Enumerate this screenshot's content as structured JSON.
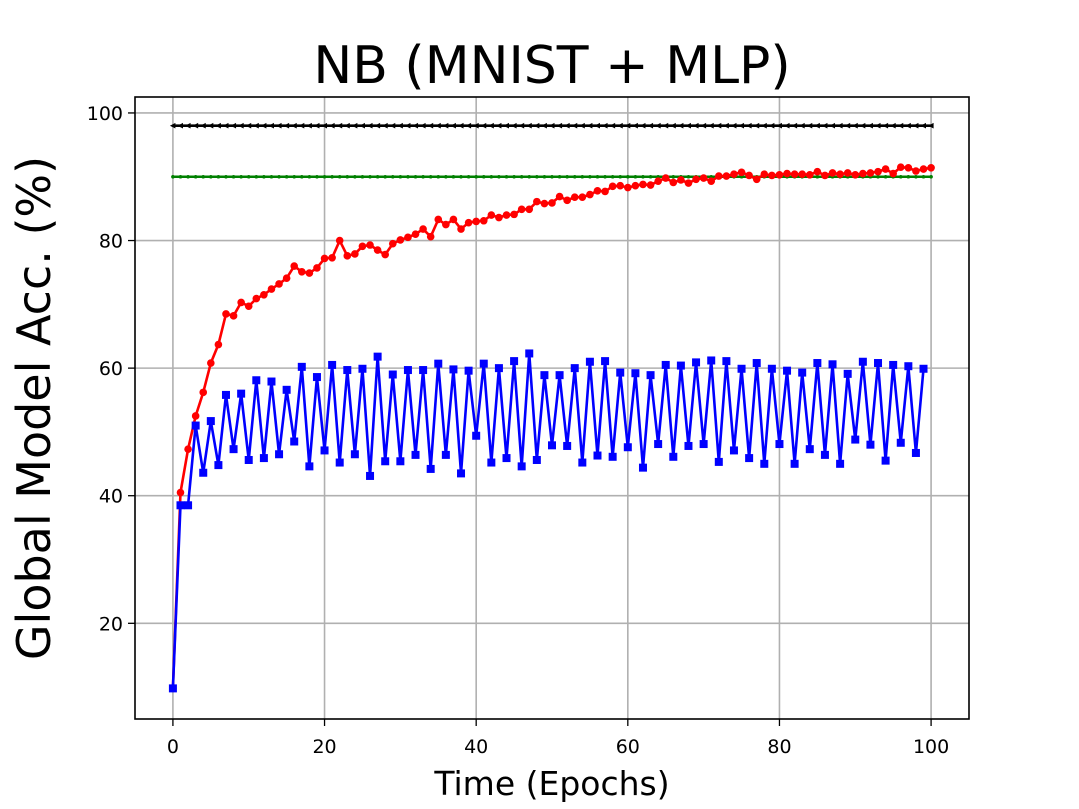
{
  "chart_data": {
    "type": "line",
    "title": "NB (MNIST + MLP)",
    "xlabel": "Time (Epochs)",
    "ylabel": "Global Model Acc. (%)",
    "xlim": [
      -5,
      105
    ],
    "ylim": [
      5,
      102.5
    ],
    "xticks": [
      0,
      20,
      40,
      60,
      80,
      100
    ],
    "yticks": [
      20,
      40,
      60,
      80,
      100
    ],
    "grid": true,
    "legend": "none",
    "series": [
      {
        "color": "#000000",
        "marker": "triangle-left",
        "x_start": 0,
        "x_step": 1,
        "values": [
          98.0,
          98.0,
          98.0,
          98.0,
          98.0,
          98.0,
          98.0,
          98.0,
          98.0,
          98.0,
          98.0,
          98.0,
          98.0,
          98.0,
          98.0,
          98.0,
          98.0,
          98.0,
          98.0,
          98.0,
          98.0,
          98.0,
          98.0,
          98.0,
          98.0,
          98.0,
          98.0,
          98.0,
          98.0,
          98.0,
          98.0,
          98.0,
          98.0,
          98.0,
          98.0,
          98.0,
          98.0,
          98.0,
          98.0,
          98.0,
          98.0,
          98.0,
          98.0,
          98.0,
          98.0,
          98.0,
          98.0,
          98.0,
          98.0,
          98.0,
          98.0,
          98.0,
          98.0,
          98.0,
          98.0,
          98.0,
          98.0,
          98.0,
          98.0,
          98.0,
          98.0,
          98.0,
          98.0,
          98.0,
          98.0,
          98.0,
          98.0,
          98.0,
          98.0,
          98.0,
          98.0,
          98.0,
          98.0,
          98.0,
          98.0,
          98.0,
          98.0,
          98.0,
          98.0,
          98.0,
          98.0,
          98.0,
          98.0,
          98.0,
          98.0,
          98.0,
          98.0,
          98.0,
          98.0,
          98.0,
          98.0,
          98.0,
          98.0,
          98.0,
          98.0,
          98.0,
          98.0,
          98.0,
          98.0,
          98.0,
          98.0
        ]
      },
      {
        "color": "#008000",
        "marker": "point",
        "x_start": 0,
        "x_step": 1,
        "values": [
          90.0,
          90.0,
          90.0,
          90.0,
          90.0,
          90.0,
          90.0,
          90.0,
          90.0,
          90.0,
          90.0,
          90.0,
          90.0,
          90.0,
          90.0,
          90.0,
          90.0,
          90.0,
          90.0,
          90.0,
          90.0,
          90.0,
          90.0,
          90.0,
          90.0,
          90.0,
          90.0,
          90.0,
          90.0,
          90.0,
          90.0,
          90.0,
          90.0,
          90.0,
          90.0,
          90.0,
          90.0,
          90.0,
          90.0,
          90.0,
          90.0,
          90.0,
          90.0,
          90.0,
          90.0,
          90.0,
          90.0,
          90.0,
          90.0,
          90.0,
          90.0,
          90.0,
          90.0,
          90.0,
          90.0,
          90.0,
          90.0,
          90.0,
          90.0,
          90.0,
          90.0,
          90.0,
          90.0,
          90.0,
          90.0,
          90.0,
          90.0,
          90.0,
          90.0,
          90.0,
          90.0,
          90.0,
          90.0,
          90.0,
          90.0,
          90.0,
          90.0,
          90.0,
          90.0,
          90.0,
          90.0,
          90.0,
          90.0,
          90.0,
          90.0,
          90.0,
          90.0,
          90.0,
          90.0,
          90.0,
          90.0,
          90.0,
          90.0,
          90.0,
          90.0,
          90.0,
          90.0,
          90.0,
          90.0,
          90.0,
          90.0
        ]
      },
      {
        "color": "#ff0000",
        "marker": "circle",
        "x_start": 0,
        "x_step": 1,
        "values": [
          9.8,
          40.5,
          47.3,
          52.5,
          56.2,
          60.8,
          63.7,
          68.5,
          68.2,
          70.3,
          69.7,
          70.9,
          71.5,
          72.4,
          73.2,
          74.1,
          76.0,
          75.1,
          74.9,
          75.7,
          77.2,
          77.3,
          80.0,
          77.6,
          77.9,
          79.1,
          79.3,
          78.5,
          77.8,
          79.5,
          80.1,
          80.5,
          81.0,
          81.8,
          80.6,
          83.3,
          82.5,
          83.3,
          81.8,
          82.8,
          83.0,
          83.1,
          84.0,
          83.6,
          84.0,
          84.1,
          84.9,
          84.9,
          86.1,
          85.8,
          85.9,
          86.9,
          86.3,
          86.8,
          86.8,
          87.2,
          87.8,
          87.7,
          88.5,
          88.6,
          88.3,
          88.6,
          88.8,
          88.7,
          89.3,
          89.8,
          89.1,
          89.5,
          89.0,
          89.6,
          89.8,
          89.3,
          90.1,
          90.1,
          90.4,
          90.7,
          90.2,
          89.6,
          90.4,
          90.2,
          90.3,
          90.5,
          90.4,
          90.4,
          90.3,
          90.8,
          90.2,
          90.6,
          90.4,
          90.6,
          90.3,
          90.5,
          90.6,
          90.8,
          91.2,
          90.5,
          91.5,
          91.4,
          90.9,
          91.2,
          91.4
        ]
      },
      {
        "color": "#0000ff",
        "marker": "square",
        "x_start": 0,
        "x_step": 1,
        "values": [
          9.8,
          38.5,
          38.5,
          51.0,
          43.6,
          51.7,
          44.8,
          55.8,
          47.3,
          56.0,
          45.6,
          58.1,
          45.9,
          57.9,
          46.5,
          56.6,
          48.5,
          60.2,
          44.6,
          58.6,
          47.1,
          60.5,
          45.2,
          59.7,
          46.5,
          59.9,
          43.1,
          61.8,
          45.4,
          59.0,
          45.4,
          59.7,
          46.4,
          59.7,
          44.2,
          60.7,
          46.4,
          59.8,
          43.5,
          59.6,
          49.4,
          60.7,
          45.2,
          60.0,
          45.9,
          61.1,
          44.6,
          62.3,
          45.6,
          58.9,
          47.9,
          58.9,
          47.8,
          60.0,
          45.2,
          61.0,
          46.3,
          61.1,
          46.1,
          59.3,
          47.6,
          59.2,
          44.4,
          58.9,
          48.1,
          60.5,
          46.1,
          60.4,
          47.8,
          60.9,
          48.1,
          61.2,
          45.3,
          61.1,
          47.1,
          59.9,
          45.9,
          60.8,
          45.0,
          59.9,
          48.1,
          59.6,
          45.0,
          59.3,
          47.3,
          60.8,
          46.4,
          60.6,
          45.0,
          59.1,
          48.8,
          61.0,
          48.0,
          60.8,
          45.5,
          60.5,
          48.3,
          60.3,
          46.7,
          59.9
        ]
      }
    ]
  }
}
